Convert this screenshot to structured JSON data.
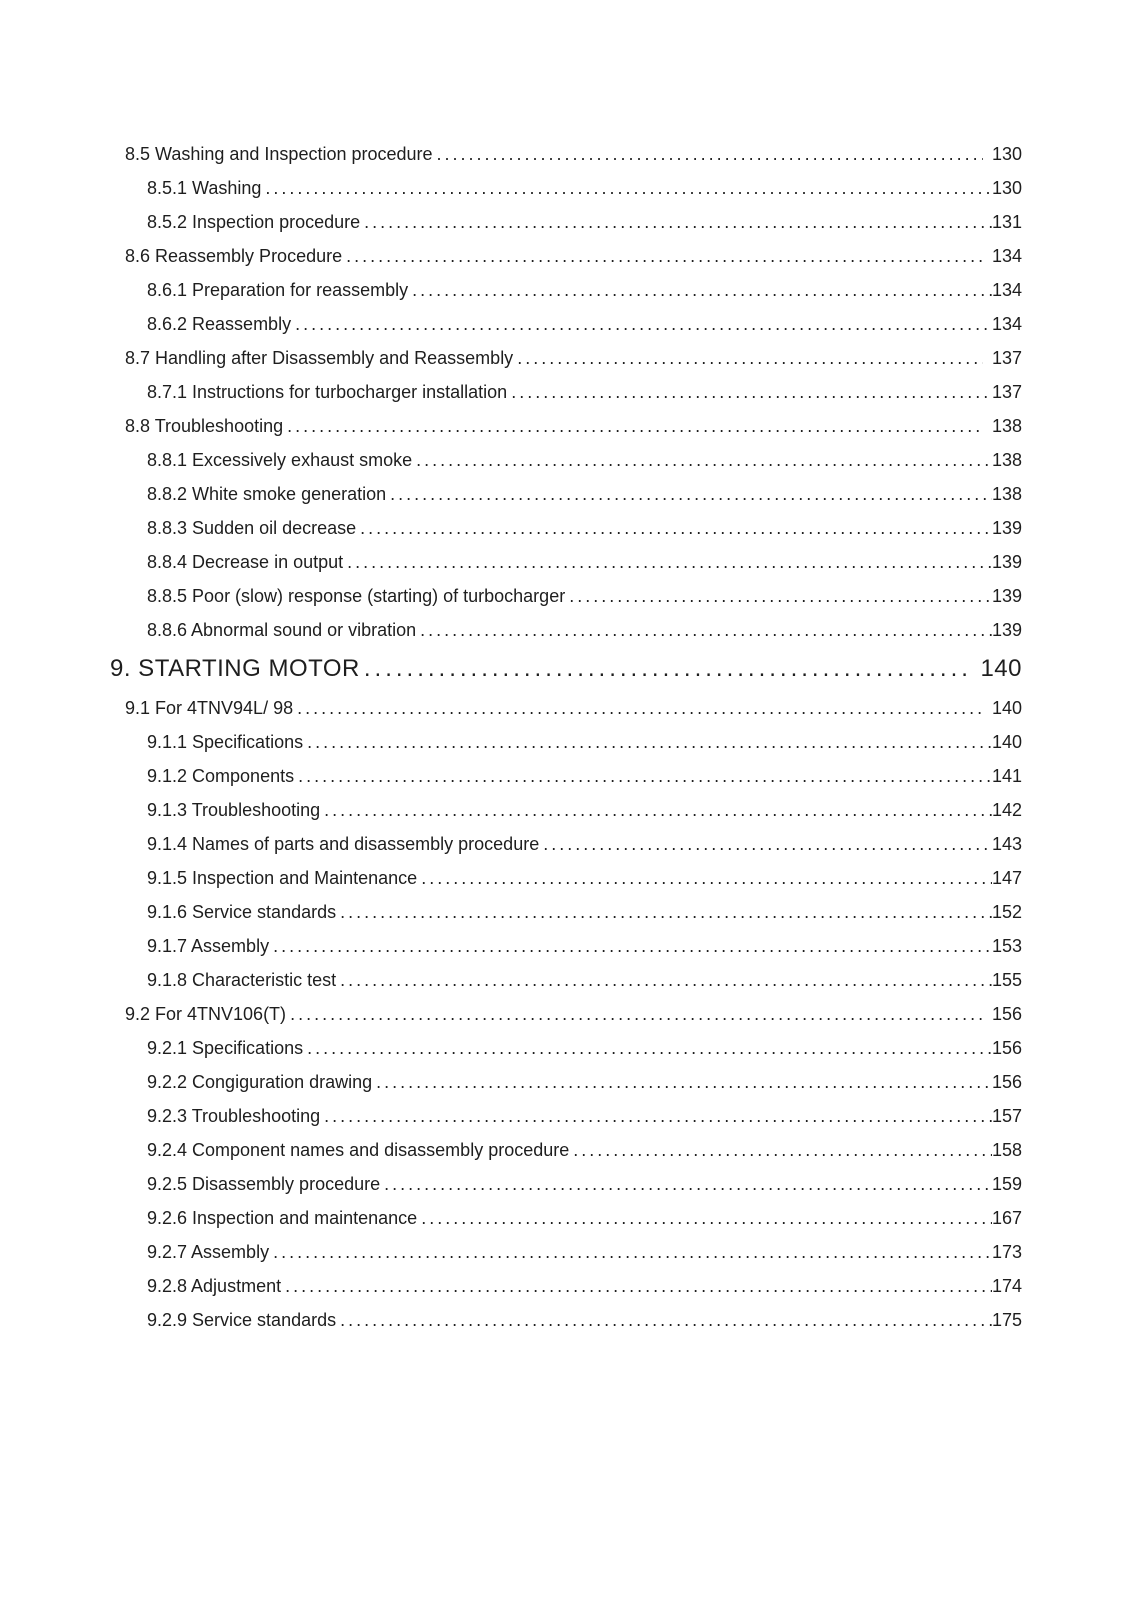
{
  "page": {
    "background_color": "#ffffff",
    "text_color": "#1e1e1e",
    "kind": "table-of-contents"
  },
  "toc": {
    "entries": [
      {
        "level": 2,
        "title": "8.5 Washing and Inspection procedure",
        "page": "130"
      },
      {
        "level": 3,
        "title": "8.5.1 Washing",
        "page": "130"
      },
      {
        "level": 3,
        "title": "8.5.2 Inspection procedure",
        "page": "131"
      },
      {
        "level": 2,
        "title": "8.6 Reassembly Procedure",
        "page": "134"
      },
      {
        "level": 3,
        "title": "8.6.1 Preparation for reassembly",
        "page": "134"
      },
      {
        "level": 3,
        "title": "8.6.2 Reassembly",
        "page": "134"
      },
      {
        "level": 2,
        "title": "8.7 Handling after Disassembly and Reassembly",
        "page": "137"
      },
      {
        "level": 3,
        "title": "8.7.1 Instructions for turbocharger installation",
        "page": "137"
      },
      {
        "level": 2,
        "title": "8.8 Troubleshooting",
        "page": "138"
      },
      {
        "level": 3,
        "title": "8.8.1 Excessively exhaust smoke",
        "page": "138"
      },
      {
        "level": 3,
        "title": "8.8.2 White smoke generation",
        "page": "138"
      },
      {
        "level": 3,
        "title": "8.8.3 Sudden oil decrease",
        "page": "139"
      },
      {
        "level": 3,
        "title": "8.8.4 Decrease in output",
        "page": "139"
      },
      {
        "level": 3,
        "title": "8.8.5 Poor (slow) response (starting) of turbocharger",
        "page": "139"
      },
      {
        "level": 3,
        "title": "8.8.6 Abnormal sound or vibration",
        "page": "139"
      },
      {
        "level": 1,
        "title": "9. STARTING MOTOR",
        "page": "140"
      },
      {
        "level": 2,
        "title": "9.1 For 4TNV94L/ 98",
        "page": "140"
      },
      {
        "level": 3,
        "title": "9.1.1 Specifications",
        "page": "140"
      },
      {
        "level": 3,
        "title": "9.1.2 Components",
        "page": "141"
      },
      {
        "level": 3,
        "title": "9.1.3 Troubleshooting",
        "page": "142"
      },
      {
        "level": 3,
        "title": "9.1.4 Names of parts and disassembly procedure",
        "page": "143"
      },
      {
        "level": 3,
        "title": "9.1.5 Inspection and Maintenance",
        "page": "147"
      },
      {
        "level": 3,
        "title": "9.1.6 Service standards",
        "page": "152"
      },
      {
        "level": 3,
        "title": "9.1.7 Assembly",
        "page": "153"
      },
      {
        "level": 3,
        "title": "9.1.8 Characteristic test",
        "page": "155"
      },
      {
        "level": 2,
        "title": "9.2 For 4TNV106(T)",
        "page": "156"
      },
      {
        "level": 3,
        "title": "9.2.1 Specifications",
        "page": "156"
      },
      {
        "level": 3,
        "title": "9.2.2 Congiguration drawing",
        "page": "156"
      },
      {
        "level": 3,
        "title": "9.2.3 Troubleshooting",
        "page": "157"
      },
      {
        "level": 3,
        "title": "9.2.4 Component names and disassembly procedure",
        "page": "158"
      },
      {
        "level": 3,
        "title": "9.2.5 Disassembly procedure",
        "page": "159"
      },
      {
        "level": 3,
        "title": "9.2.6 Inspection and maintenance",
        "page": "167"
      },
      {
        "level": 3,
        "title": "9.2.7 Assembly",
        "page": "173"
      },
      {
        "level": 3,
        "title": "9.2.8 Adjustment",
        "page": "174"
      },
      {
        "level": 3,
        "title": "9.2.9 Service standards",
        "page": "175"
      }
    ]
  }
}
